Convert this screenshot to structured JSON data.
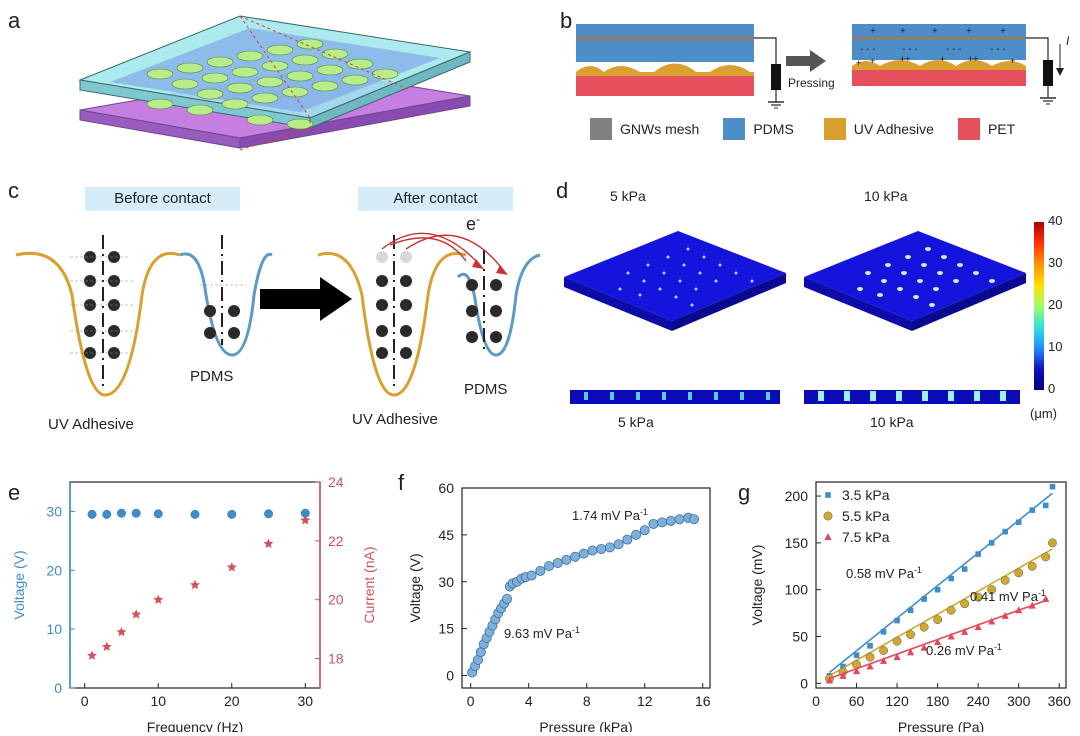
{
  "panels": {
    "a": "a",
    "b": "b",
    "c": "c",
    "d": "d",
    "e": "e",
    "f": "f",
    "g": "g"
  },
  "colors": {
    "gnws": "#808080",
    "pdms": "#4d8ec9",
    "uv": "#d9a030",
    "pet": "#e5505c",
    "uv_curve": "#d9a030",
    "pdms_curve": "#5b9ac5",
    "blue_series": "#3f8ccb",
    "red_series": "#d4505a",
    "g_s1": "#3f8ccb",
    "g_s2": "#d4a62a",
    "g_s3": "#e04b5c"
  },
  "b": {
    "pressing": "Pressing",
    "current_symbol": "I",
    "legend": [
      "GNWs mesh",
      "PDMS",
      "UV Adhesive",
      "PET"
    ]
  },
  "c": {
    "before": "Before contact",
    "after": "After  contact",
    "electron": "e",
    "electron_sup": "-",
    "uv_label_left": "UV Adhesive",
    "pdms_label_left": "PDMS",
    "uv_label_right": "UV Adhesive",
    "pdms_label_right": "PDMS"
  },
  "d": {
    "top_left": "5 kPa",
    "top_right": "10 kPa",
    "bottom_left": "5 kPa",
    "bottom_right": "10 kPa",
    "colorbar_ticks": [
      "40",
      "30",
      "20",
      "10",
      "0"
    ],
    "unit": "(μm)"
  },
  "chart_data": [
    {
      "id": "e",
      "type": "scatter",
      "xlabel": "Frequency (Hz)",
      "ylabel": "Voltage (V)",
      "y2label": "Current (nA)",
      "xlim": [
        -2,
        32
      ],
      "ylim": [
        0,
        35
      ],
      "y2lim": [
        17,
        24
      ],
      "xticks": [
        "0",
        "10",
        "20",
        "30"
      ],
      "yticks": [
        "0",
        "10",
        "20",
        "30"
      ],
      "y2ticks": [
        "18",
        "20",
        "22",
        "24"
      ],
      "series": [
        {
          "axis": "left",
          "marker": "circle",
          "x": [
            1,
            3,
            5,
            7,
            10,
            15,
            20,
            25,
            30
          ],
          "y": [
            29.5,
            29.5,
            29.7,
            29.7,
            29.6,
            29.5,
            29.5,
            29.6,
            29.7
          ]
        },
        {
          "axis": "right",
          "marker": "star",
          "x": [
            1,
            3,
            5,
            7,
            10,
            15,
            20,
            25,
            30
          ],
          "y": [
            18.1,
            18.4,
            18.9,
            19.5,
            20.0,
            20.5,
            21.1,
            21.9,
            22.7
          ]
        }
      ]
    },
    {
      "id": "f",
      "type": "scatter",
      "xlabel": "Pressure (kPa)",
      "ylabel": "Voltage (V)",
      "xlim": [
        -0.6,
        16.5
      ],
      "ylim": [
        -4,
        60
      ],
      "xticks": [
        "0",
        "4",
        "8",
        "12",
        "16"
      ],
      "yticks": [
        "0",
        "15",
        "30",
        "45",
        "60"
      ],
      "annotations": [
        "1.74 mV Pa",
        "9.63 mV Pa"
      ],
      "annotation_sup": "-1",
      "series": [
        {
          "x": [
            0.1,
            0.3,
            0.5,
            0.7,
            0.9,
            1.1,
            1.3,
            1.5,
            1.7,
            1.9,
            2.1,
            2.3,
            2.5,
            2.7,
            2.9,
            3.2,
            3.5,
            3.8,
            4.2,
            4.8,
            5.4,
            6.0,
            6.6,
            7.2,
            7.8,
            8.4,
            9.0,
            9.6,
            10.2,
            10.8,
            11.4,
            12.0,
            12.6,
            13.2,
            13.8,
            14.4,
            15.0,
            15.4
          ],
          "y": [
            1,
            3,
            5,
            7.5,
            10,
            12,
            14,
            16,
            18,
            20,
            21.5,
            23,
            24.5,
            28.5,
            29.5,
            30,
            31,
            31.5,
            32,
            33.5,
            35,
            36,
            37,
            38,
            39,
            40,
            40.5,
            41,
            42,
            43.5,
            45,
            46.5,
            48.5,
            49,
            49.5,
            50,
            50.5,
            50
          ]
        }
      ]
    },
    {
      "id": "g",
      "type": "scatter",
      "xlabel": "Pressure (Pa)",
      "ylabel": "Voltage (mV)",
      "xlim": [
        0,
        370
      ],
      "ylim": [
        -5,
        215
      ],
      "xticks": [
        "0",
        "60",
        "120",
        "180",
        "240",
        "300",
        "360"
      ],
      "yticks": [
        "0",
        "50",
        "100",
        "150",
        "200"
      ],
      "legend": [
        "3.5 kPa",
        "5.5 kPa",
        "7.5 kPa"
      ],
      "annotations": [
        "0.58 mV Pa",
        "0.41 mV Pa",
        "0.26 mV Pa"
      ],
      "annotation_sup": "-1",
      "series": [
        {
          "name": "3.5 kPa",
          "marker": "square",
          "slope": 0.58,
          "intercept": 0,
          "x": [
            20,
            40,
            60,
            80,
            100,
            120,
            140,
            160,
            180,
            200,
            220,
            240,
            260,
            280,
            300,
            320,
            340,
            350
          ],
          "y": [
            8,
            18,
            30,
            40,
            55,
            67,
            78,
            90,
            100,
            112,
            122,
            138,
            150,
            162,
            172,
            185,
            190,
            210
          ]
        },
        {
          "name": "5.5 kPa",
          "marker": "circle",
          "slope": 0.41,
          "intercept": 0,
          "x": [
            20,
            40,
            60,
            80,
            100,
            120,
            140,
            160,
            180,
            200,
            220,
            240,
            260,
            280,
            300,
            320,
            340,
            350
          ],
          "y": [
            5,
            12,
            20,
            28,
            35,
            45,
            52,
            60,
            68,
            78,
            85,
            92,
            100,
            110,
            118,
            125,
            135,
            150
          ]
        },
        {
          "name": "7.5 kPa",
          "marker": "triangle",
          "slope": 0.26,
          "intercept": 0,
          "x": [
            20,
            40,
            60,
            80,
            100,
            120,
            140,
            160,
            180,
            200,
            220,
            240,
            260,
            280,
            300,
            320,
            340
          ],
          "y": [
            3,
            8,
            13,
            18,
            24,
            28,
            33,
            38,
            44,
            50,
            55,
            60,
            66,
            72,
            78,
            83,
            90
          ]
        }
      ]
    }
  ]
}
